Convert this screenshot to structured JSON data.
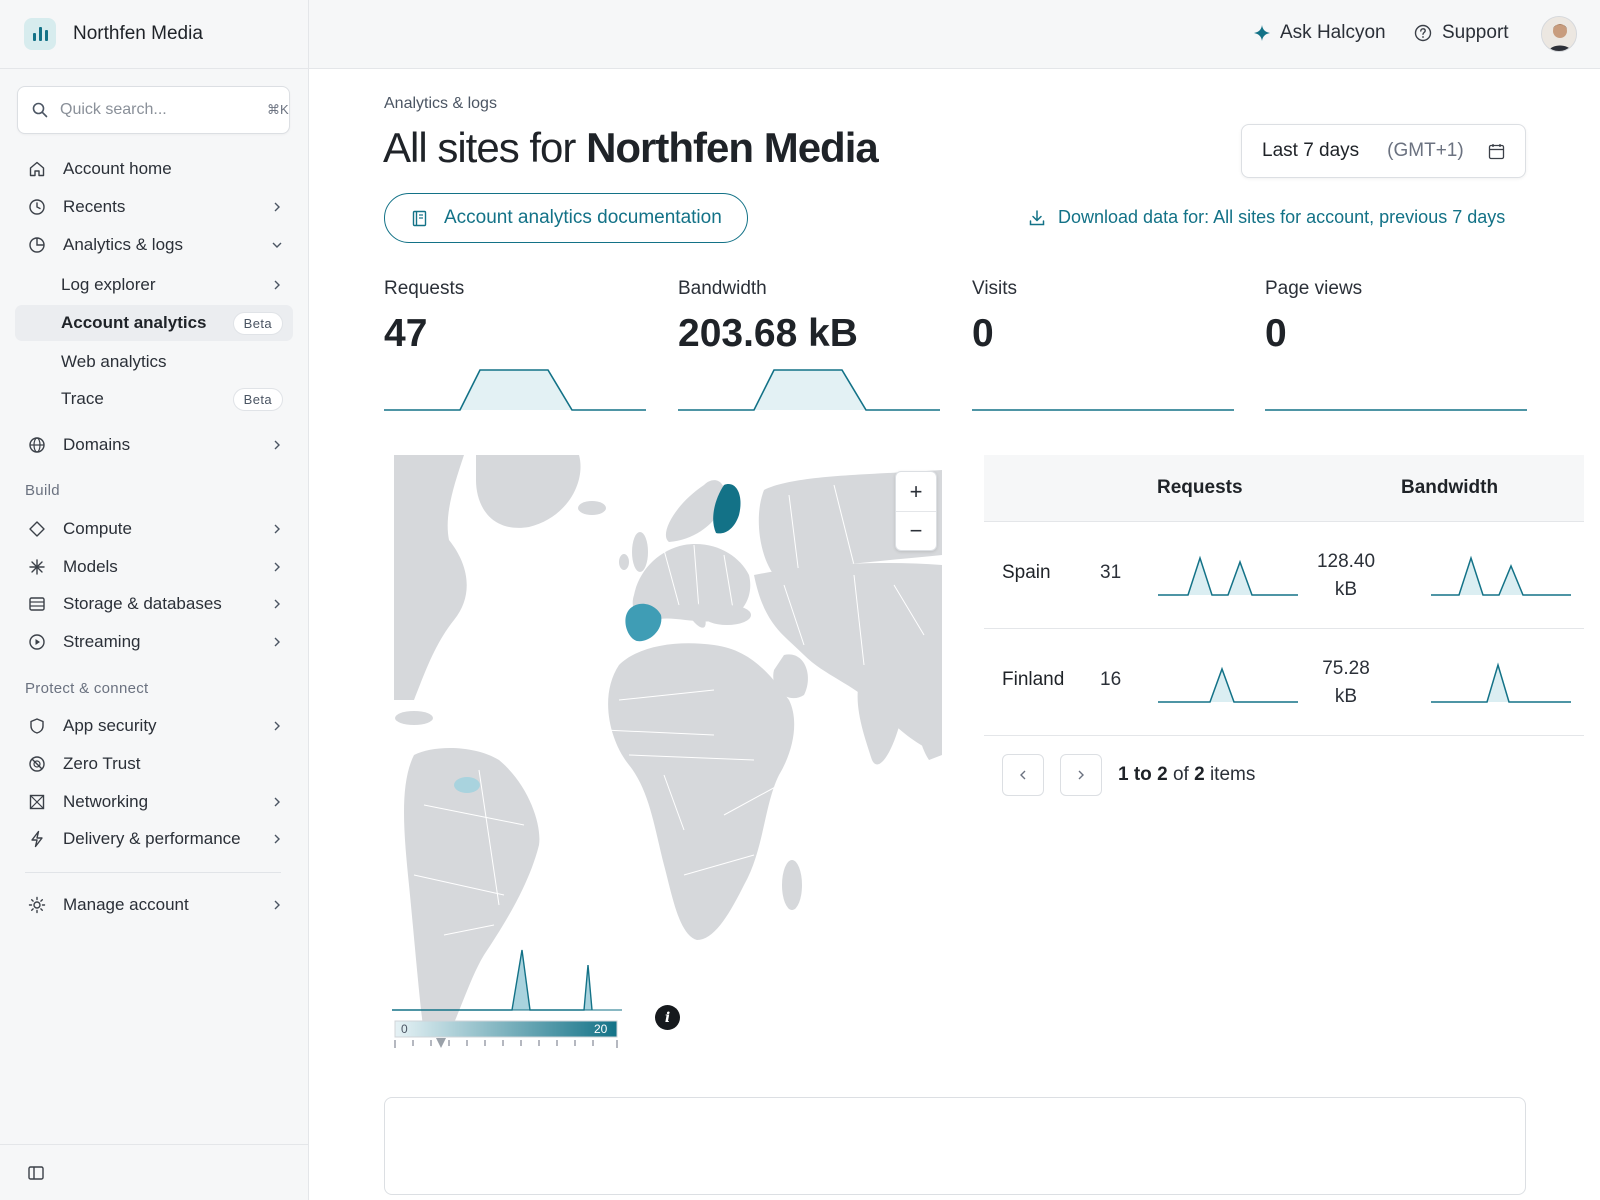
{
  "brand": {
    "name": "Northfen Media"
  },
  "search": {
    "placeholder": "Quick search...",
    "shortcut": "⌘K"
  },
  "sidebar": {
    "items": [
      {
        "label": "Account home",
        "icon": "home-icon"
      },
      {
        "label": "Recents",
        "icon": "clock-icon"
      },
      {
        "label": "Analytics & logs",
        "icon": "chart-pie-icon",
        "expanded": true
      },
      {
        "label": "Log explorer"
      },
      {
        "label": "Account analytics",
        "badge": "Beta",
        "active": true
      },
      {
        "label": "Web analytics"
      },
      {
        "label": "Trace",
        "badge": "Beta"
      },
      {
        "label": "Domains",
        "icon": "globe-icon"
      },
      {
        "label": "Compute",
        "icon": "diamond-icon"
      },
      {
        "label": "Models",
        "icon": "asterisk-icon"
      },
      {
        "label": "Storage & databases",
        "icon": "database-icon"
      },
      {
        "label": "Streaming",
        "icon": "play-circle-icon"
      },
      {
        "label": "App security",
        "icon": "shield-icon"
      },
      {
        "label": "Zero Trust",
        "icon": "zero-trust-icon"
      },
      {
        "label": "Networking",
        "icon": "network-icon"
      },
      {
        "label": "Delivery & performance",
        "icon": "bolt-icon"
      },
      {
        "label": "Manage account",
        "icon": "gear-icon"
      }
    ],
    "sections": {
      "build": "Build",
      "protect": "Protect & connect"
    }
  },
  "topbar": {
    "ask_label": "Ask Halcyon",
    "support_label": "Support"
  },
  "page": {
    "breadcrumb": "Analytics & logs",
    "title_prefix": "All sites for",
    "title_account": "Northfen Media",
    "date_range": "Last 7 days",
    "timezone": "(GMT+1)",
    "docs_label": "Account analytics documentation",
    "download_label": "Download data for: All sites for account, previous 7 days"
  },
  "metrics": [
    {
      "label": "Requests",
      "value": "47",
      "trend": [
        0,
        0,
        1,
        1,
        0,
        0
      ]
    },
    {
      "label": "Bandwidth",
      "value": "203.68 kB",
      "trend": [
        0,
        0,
        1,
        1,
        0,
        0
      ]
    },
    {
      "label": "Visits",
      "value": "0",
      "trend": [
        0,
        0,
        0,
        0,
        0,
        0
      ]
    },
    {
      "label": "Page views",
      "value": "0",
      "trend": [
        0,
        0,
        0,
        0,
        0,
        0
      ]
    }
  ],
  "map": {
    "legend_min": "0",
    "legend_max": "20",
    "highlight_color": "#137287",
    "mid_color": "#3f9db5",
    "low_color": "#a9d3de",
    "zoom_in": "+",
    "zoom_out": "−",
    "info": "i"
  },
  "geo_table": {
    "headers": {
      "requests": "Requests",
      "bandwidth": "Bandwidth"
    },
    "rows": [
      {
        "country": "Spain",
        "requests": "31",
        "bandwidth_value": "128.40",
        "bandwidth_unit": "kB"
      },
      {
        "country": "Finland",
        "requests": "16",
        "bandwidth_value": "75.28",
        "bandwidth_unit": "kB"
      }
    ],
    "pager": {
      "from": "1",
      "to_word": "to",
      "to": "2",
      "of_word": "of",
      "total": "2",
      "items_word": "items"
    }
  }
}
